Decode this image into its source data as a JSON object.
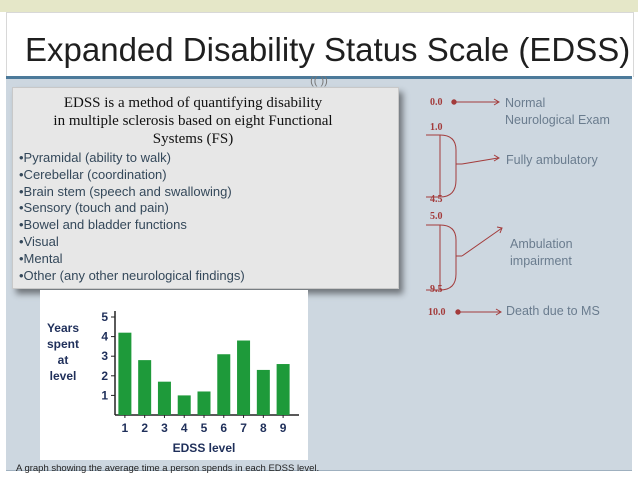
{
  "slide": {
    "title": "Expanded Disability Status Scale (EDSS)",
    "tab_symbol": "(( ))"
  },
  "callout": {
    "heading_line1": "EDSS is a method of quantifying disability",
    "heading_line2": "in multiple sclerosis based on eight Functional",
    "heading_line3": "Systems (FS)",
    "bullets": [
      "•Pyramidal (ability to walk)",
      "•Cerebellar (coordination)",
      "•Brain stem (speech and swallowing)",
      "•Sensory (touch and pain)",
      "•Bowel and bladder functions",
      "•Visual",
      "•Mental",
      "•Other (any other neurological findings)"
    ]
  },
  "scale": {
    "labels": [
      "0.0",
      "1.0",
      "4.5",
      "5.0",
      "9.5",
      "10.0"
    ],
    "descriptions": {
      "normal_line1": "Normal",
      "normal_line2": "Neurological Exam",
      "ambulatory": "Fully ambulatory",
      "impairment_line1": "Ambulation",
      "impairment_line2": "impairment",
      "death": "Death due to MS"
    },
    "accent_color": "#a33b3b"
  },
  "chart_data": {
    "type": "bar",
    "categories": [
      "1",
      "2",
      "3",
      "4",
      "5",
      "6",
      "7",
      "8",
      "9"
    ],
    "values": [
      4.2,
      2.8,
      1.7,
      1.0,
      1.2,
      3.1,
      3.8,
      2.3,
      2.6
    ],
    "ylabel": "Years spent at level",
    "xlabel": "EDSS level",
    "ylim": [
      0,
      5
    ],
    "yticks": [
      "1",
      "2",
      "3",
      "4",
      "5"
    ],
    "bar_color": "#1e9a3a"
  },
  "caption": "A graph showing the average time a person spends in each EDSS level."
}
